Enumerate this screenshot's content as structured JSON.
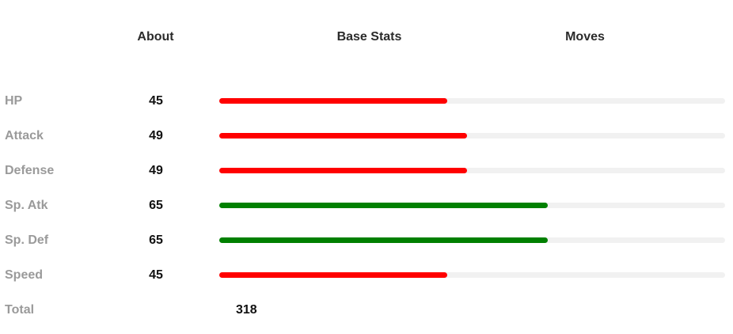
{
  "tabs": {
    "about": "About",
    "base_stats": "Base Stats",
    "moves": "Moves"
  },
  "stats": [
    {
      "label": "HP",
      "value": "45",
      "fill_fraction": 0.45,
      "color": "#ff0000"
    },
    {
      "label": "Attack",
      "value": "49",
      "fill_fraction": 0.49,
      "color": "#ff0000"
    },
    {
      "label": "Defense",
      "value": "49",
      "fill_fraction": 0.49,
      "color": "#ff0000"
    },
    {
      "label": "Sp. Atk",
      "value": "65",
      "fill_fraction": 0.65,
      "color": "#008000"
    },
    {
      "label": "Sp. Def",
      "value": "65",
      "fill_fraction": 0.65,
      "color": "#008000"
    },
    {
      "label": "Speed",
      "value": "45",
      "fill_fraction": 0.45,
      "color": "#ff0000"
    }
  ],
  "total": {
    "label": "Total",
    "value": "318"
  },
  "colors": {
    "track": "#f1f1f1",
    "low": "#ff0000",
    "high": "#008000"
  }
}
